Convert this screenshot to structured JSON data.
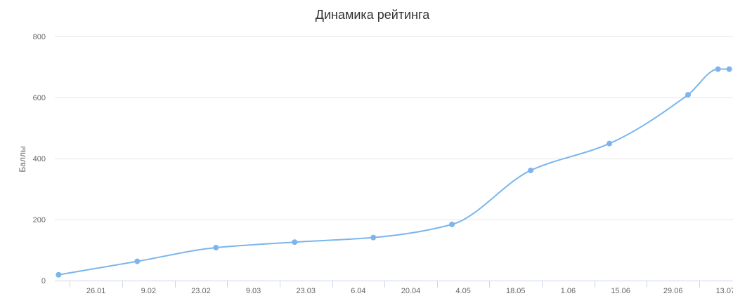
{
  "chart_data": {
    "type": "line",
    "title": "Динамика рейтинга",
    "xlabel": "",
    "ylabel": "Баллы",
    "x_type": "date",
    "xlim": [
      "2019-01-15",
      "2019-07-15"
    ],
    "ylim": [
      0,
      800
    ],
    "yticks": [
      0,
      200,
      400,
      600,
      800
    ],
    "xticks": [
      {
        "date": "2019-01-26",
        "label": "26.01"
      },
      {
        "date": "2019-02-09",
        "label": "9.02"
      },
      {
        "date": "2019-02-23",
        "label": "23.02"
      },
      {
        "date": "2019-03-09",
        "label": "9.03"
      },
      {
        "date": "2019-03-23",
        "label": "23.03"
      },
      {
        "date": "2019-04-06",
        "label": "6.04"
      },
      {
        "date": "2019-04-20",
        "label": "20.04"
      },
      {
        "date": "2019-05-04",
        "label": "4.05"
      },
      {
        "date": "2019-05-18",
        "label": "18.05"
      },
      {
        "date": "2019-06-01",
        "label": "1.06"
      },
      {
        "date": "2019-06-15",
        "label": "15.06"
      },
      {
        "date": "2019-06-29",
        "label": "29.06"
      },
      {
        "date": "2019-07-13",
        "label": "13.07"
      }
    ],
    "grid": true,
    "legend": "none",
    "color": "#7cb5ec",
    "series": [
      {
        "name": "",
        "x": [
          "2019-01-16",
          "2019-02-06",
          "2019-02-27",
          "2019-03-20",
          "2019-04-10",
          "2019-05-01",
          "2019-05-22",
          "2019-06-12",
          "2019-07-03",
          "2019-07-11",
          "2019-07-14"
        ],
        "y": [
          19,
          63,
          108,
          126,
          141,
          184,
          361,
          449,
          609,
          693,
          693
        ]
      }
    ]
  }
}
